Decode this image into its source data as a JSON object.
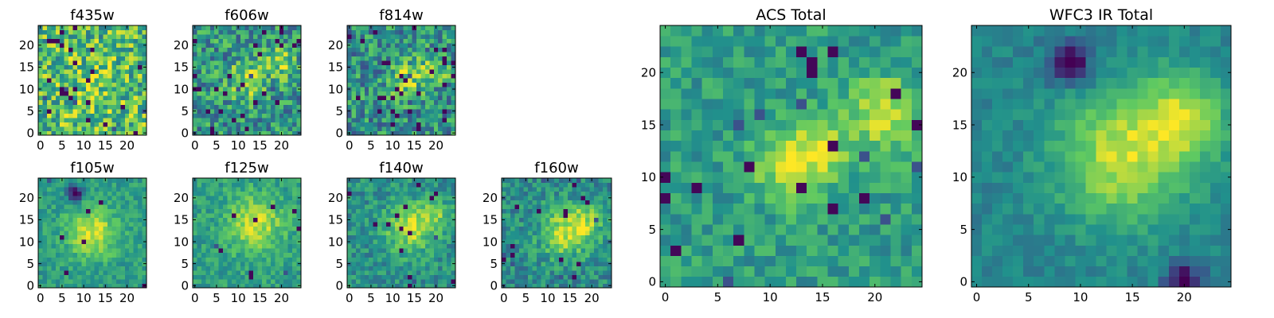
{
  "figure": {
    "colormap": "viridis",
    "colormap_stops": [
      "#440154",
      "#3b528b",
      "#21918c",
      "#5ec962",
      "#fde725"
    ],
    "background": "#ffffff"
  },
  "chart_data": [
    {
      "type": "heatmap",
      "title": "f435w",
      "size": 25,
      "xlim": [
        -0.5,
        24.5
      ],
      "ylim": [
        -0.5,
        24.5
      ],
      "grid": false,
      "xticks": [
        0,
        5,
        10,
        15,
        20
      ],
      "yticks": [
        0,
        5,
        10,
        15,
        20
      ],
      "xtick_labels": [
        "0",
        "5",
        "10",
        "15",
        "20"
      ],
      "ytick_labels": [
        "0",
        "5",
        "10",
        "15",
        "20"
      ],
      "noise": 0.3,
      "outlier_rate": 0.04,
      "seed": 11,
      "background_level": 0.68,
      "features": [
        {
          "x": 11,
          "y": 10,
          "amplitude": 0.1,
          "sigma": 5
        }
      ]
    },
    {
      "type": "heatmap",
      "title": "f606w",
      "size": 25,
      "xlim": [
        -0.5,
        24.5
      ],
      "ylim": [
        -0.5,
        24.5
      ],
      "grid": false,
      "xticks": [
        0,
        5,
        10,
        15,
        20
      ],
      "yticks": [
        0,
        5,
        10,
        15,
        20
      ],
      "xtick_labels": [
        "0",
        "5",
        "10",
        "15",
        "20"
      ],
      "ytick_labels": [
        "0",
        "5",
        "10",
        "15",
        "20"
      ],
      "noise": 0.26,
      "outlier_rate": 0.05,
      "seed": 23,
      "background_level": 0.52,
      "features": [
        {
          "x": 12,
          "y": 12,
          "amplitude": 0.35,
          "sigma": 3
        },
        {
          "x": 20,
          "y": 16,
          "amplitude": 0.3,
          "sigma": 2.5
        }
      ]
    },
    {
      "type": "heatmap",
      "title": "f814w",
      "size": 25,
      "xlim": [
        -0.5,
        24.5
      ],
      "ylim": [
        -0.5,
        24.5
      ],
      "grid": false,
      "xticks": [
        0,
        5,
        10,
        15,
        20
      ],
      "yticks": [
        0,
        5,
        10,
        15,
        20
      ],
      "xtick_labels": [
        "0",
        "5",
        "10",
        "15",
        "20"
      ],
      "ytick_labels": [
        "0",
        "5",
        "10",
        "15",
        "20"
      ],
      "noise": 0.26,
      "outlier_rate": 0.06,
      "seed": 37,
      "background_level": 0.5,
      "features": [
        {
          "x": 13,
          "y": 12,
          "amplitude": 0.32,
          "sigma": 3
        },
        {
          "x": 20,
          "y": 15,
          "amplitude": 0.3,
          "sigma": 2.5
        }
      ]
    },
    {
      "type": "heatmap",
      "title": "f105w",
      "size": 25,
      "xlim": [
        -0.5,
        24.5
      ],
      "ylim": [
        -0.5,
        24.5
      ],
      "grid": false,
      "xticks": [
        0,
        5,
        10,
        15,
        20
      ],
      "yticks": [
        0,
        5,
        10,
        15,
        20
      ],
      "xtick_labels": [
        "0",
        "5",
        "10",
        "15",
        "20"
      ],
      "ytick_labels": [
        "0",
        "5",
        "10",
        "15",
        "20"
      ],
      "noise": 0.12,
      "outlier_rate": 0.01,
      "seed": 41,
      "background_level": 0.55,
      "features": [
        {
          "x": 12,
          "y": 12,
          "amplitude": 0.38,
          "sigma": 4
        },
        {
          "x": 8,
          "y": 21,
          "amplitude": -0.6,
          "sigma": 1.3
        }
      ]
    },
    {
      "type": "heatmap",
      "title": "f125w",
      "size": 25,
      "xlim": [
        -0.5,
        24.5
      ],
      "ylim": [
        -0.5,
        24.5
      ],
      "grid": false,
      "xticks": [
        0,
        5,
        10,
        15,
        20
      ],
      "yticks": [
        0,
        5,
        10,
        15,
        20
      ],
      "xtick_labels": [
        "0",
        "5",
        "10",
        "15",
        "20"
      ],
      "ytick_labels": [
        "0",
        "5",
        "10",
        "15",
        "20"
      ],
      "noise": 0.13,
      "outlier_rate": 0.02,
      "seed": 53,
      "background_level": 0.56,
      "features": [
        {
          "x": 14,
          "y": 14,
          "amplitude": 0.35,
          "sigma": 4.5
        }
      ]
    },
    {
      "type": "heatmap",
      "title": "f140w",
      "size": 25,
      "xlim": [
        -0.5,
        24.5
      ],
      "ylim": [
        -0.5,
        24.5
      ],
      "grid": false,
      "xticks": [
        0,
        5,
        10,
        15,
        20
      ],
      "yticks": [
        0,
        5,
        10,
        15,
        20
      ],
      "xtick_labels": [
        "0",
        "5",
        "10",
        "15",
        "20"
      ],
      "ytick_labels": [
        "0",
        "5",
        "10",
        "15",
        "20"
      ],
      "noise": 0.15,
      "outlier_rate": 0.03,
      "seed": 67,
      "background_level": 0.5,
      "features": [
        {
          "x": 14,
          "y": 13,
          "amplitude": 0.38,
          "sigma": 4
        },
        {
          "x": 20,
          "y": 16,
          "amplitude": 0.25,
          "sigma": 2.5
        }
      ]
    },
    {
      "type": "heatmap",
      "title": "f160w",
      "size": 25,
      "xlim": [
        -0.5,
        24.5
      ],
      "ylim": [
        -0.5,
        24.5
      ],
      "grid": false,
      "xticks": [
        0,
        5,
        10,
        15,
        20
      ],
      "yticks": [
        0,
        5,
        10,
        15,
        20
      ],
      "xtick_labels": [
        "0",
        "5",
        "10",
        "15",
        "20"
      ],
      "ytick_labels": [
        "0",
        "5",
        "10",
        "15",
        "20"
      ],
      "noise": 0.16,
      "outlier_rate": 0.03,
      "seed": 79,
      "background_level": 0.48,
      "features": [
        {
          "x": 14,
          "y": 12,
          "amplitude": 0.4,
          "sigma": 4
        },
        {
          "x": 19,
          "y": 15,
          "amplitude": 0.25,
          "sigma": 3
        }
      ]
    },
    {
      "type": "heatmap",
      "title": "ACS Total",
      "size": 25,
      "xlim": [
        -0.5,
        24.5
      ],
      "ylim": [
        -0.5,
        24.5
      ],
      "grid": false,
      "xticks": [
        0,
        5,
        10,
        15,
        20
      ],
      "yticks": [
        0,
        5,
        10,
        15,
        20
      ],
      "xtick_labels": [
        "0",
        "5",
        "10",
        "15",
        "20"
      ],
      "ytick_labels": [
        "0",
        "5",
        "10",
        "15",
        "20"
      ],
      "noise": 0.14,
      "outlier_rate": 0.04,
      "seed": 97,
      "background_level": 0.55,
      "features": [
        {
          "x": 12,
          "y": 11,
          "amplitude": 0.38,
          "sigma": 2.5
        },
        {
          "x": 21,
          "y": 16,
          "amplitude": 0.38,
          "sigma": 2.5
        },
        {
          "x": 15,
          "y": 13,
          "amplitude": 0.25,
          "sigma": 2
        }
      ]
    },
    {
      "type": "heatmap",
      "title": "WFC3 IR Total",
      "size": 25,
      "xlim": [
        -0.5,
        24.5
      ],
      "ylim": [
        -0.5,
        24.5
      ],
      "grid": false,
      "xticks": [
        0,
        5,
        10,
        15,
        20
      ],
      "yticks": [
        0,
        5,
        10,
        15,
        20
      ],
      "xtick_labels": [
        "0",
        "5",
        "10",
        "15",
        "20"
      ],
      "ytick_labels": [
        "0",
        "5",
        "10",
        "15",
        "20"
      ],
      "noise": 0.08,
      "outlier_rate": 0.0,
      "seed": 113,
      "background_level": 0.45,
      "features": [
        {
          "x": 14,
          "y": 12,
          "amplitude": 0.45,
          "sigma": 4.5
        },
        {
          "x": 20,
          "y": 16,
          "amplitude": 0.35,
          "sigma": 3
        },
        {
          "x": 9,
          "y": 21,
          "amplitude": -0.55,
          "sigma": 1.4
        },
        {
          "x": 20,
          "y": 0,
          "amplitude": -0.5,
          "sigma": 1.2
        }
      ]
    }
  ]
}
